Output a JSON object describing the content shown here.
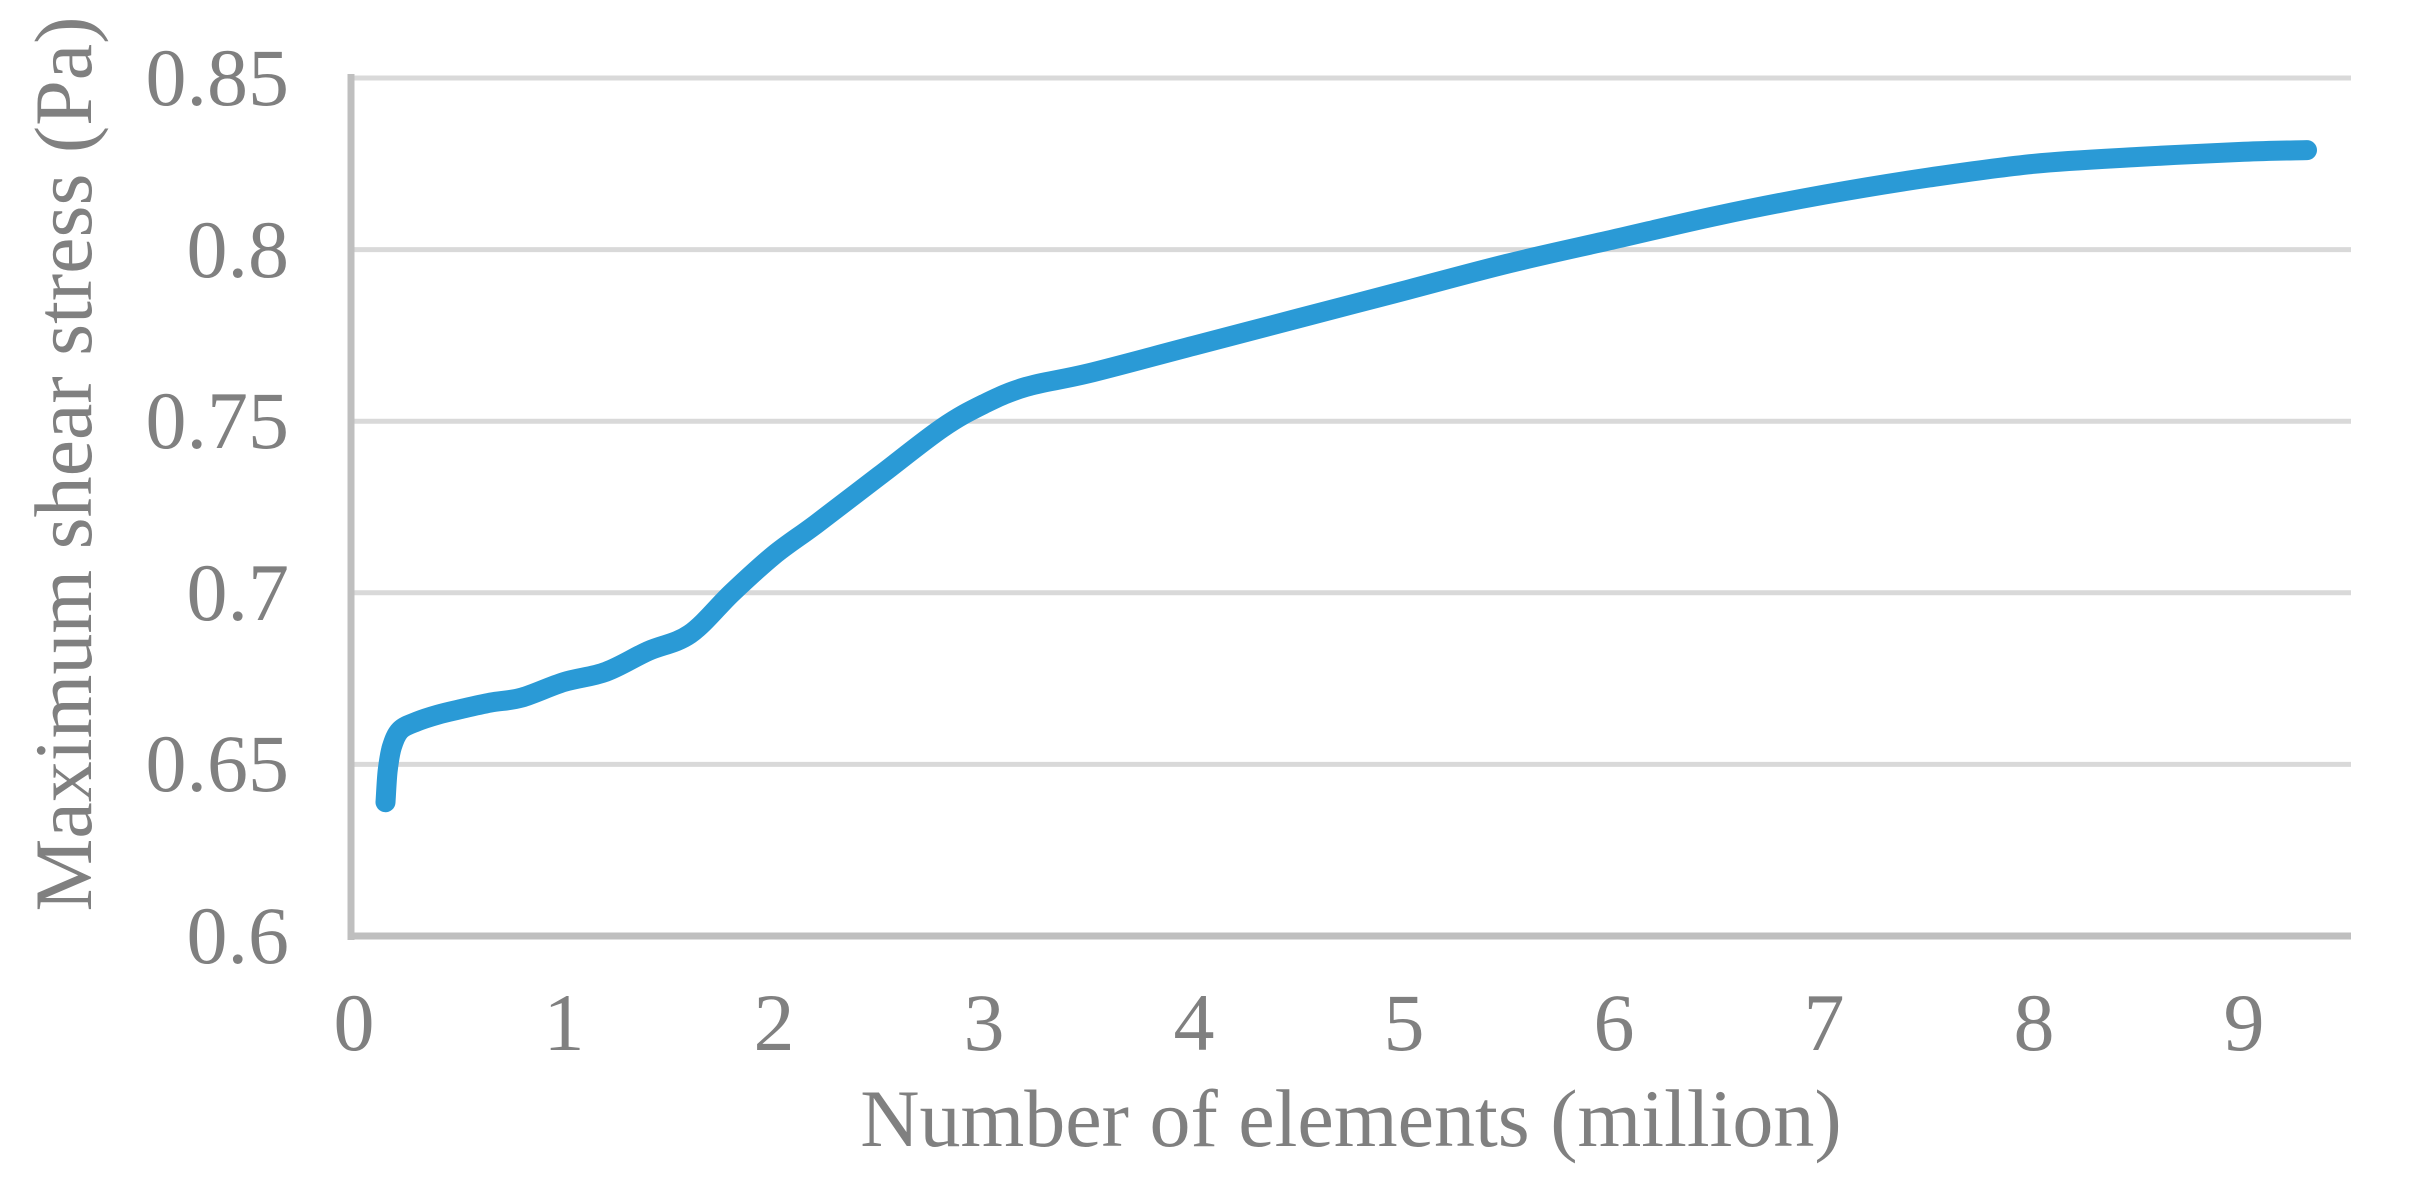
{
  "chart_data": {
    "type": "line",
    "title": "",
    "xlabel": "Number of elements (million)",
    "ylabel": "Maximum shear stress (Pa)",
    "xlim": [
      0,
      9.5
    ],
    "ylim": [
      0.6,
      0.85
    ],
    "xticks": [
      0,
      1,
      2,
      3,
      4,
      5,
      6,
      7,
      8,
      9
    ],
    "xtick_labels": [
      "0",
      "1",
      "2",
      "3",
      "4",
      "5",
      "6",
      "7",
      "8",
      "9"
    ],
    "yticks": [
      0.6,
      0.65,
      0.7,
      0.75,
      0.8,
      0.85
    ],
    "ytick_labels": [
      "0.6",
      "0.65",
      "0.7",
      "0.75",
      "0.8",
      "0.85"
    ],
    "grid": "horizontal",
    "legend_position": "none",
    "marker": "none",
    "smooth": true,
    "colors": {
      "line": "#2A9AD6",
      "gridline": "#D9D9D9",
      "axis_line": "#BFBFBF",
      "text": "#808080",
      "background": "#FFFFFF"
    },
    "series": [
      {
        "points": [
          [
            0.15,
            0.639
          ],
          [
            0.16,
            0.648
          ],
          [
            0.18,
            0.655
          ],
          [
            0.22,
            0.66
          ],
          [
            0.3,
            0.6625
          ],
          [
            0.4,
            0.6645
          ],
          [
            0.5,
            0.666
          ],
          [
            0.65,
            0.668
          ],
          [
            0.8,
            0.6695
          ],
          [
            1.0,
            0.674
          ],
          [
            1.2,
            0.677
          ],
          [
            1.4,
            0.683
          ],
          [
            1.6,
            0.688
          ],
          [
            1.8,
            0.7
          ],
          [
            2.0,
            0.711
          ],
          [
            2.2,
            0.72
          ],
          [
            2.5,
            0.734
          ],
          [
            2.8,
            0.748
          ],
          [
            3.0,
            0.755
          ],
          [
            3.2,
            0.76
          ],
          [
            3.5,
            0.764
          ],
          [
            4.0,
            0.772
          ],
          [
            4.5,
            0.78
          ],
          [
            5.0,
            0.788
          ],
          [
            5.5,
            0.796
          ],
          [
            6.0,
            0.803
          ],
          [
            6.5,
            0.81
          ],
          [
            7.0,
            0.816
          ],
          [
            7.5,
            0.821
          ],
          [
            8.0,
            0.825
          ],
          [
            8.5,
            0.827
          ],
          [
            9.0,
            0.8285
          ],
          [
            9.3,
            0.829
          ]
        ]
      }
    ]
  }
}
